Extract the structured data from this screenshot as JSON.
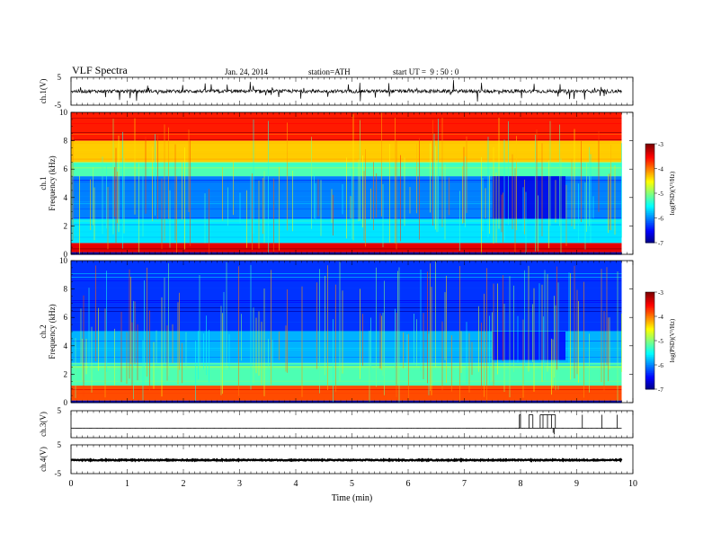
{
  "header": {
    "title": "VLF Spectra",
    "date": "Jan. 24, 2014",
    "station": "station=ATH",
    "start": "start UT =  9 : 50 : 0"
  },
  "chart_data": [
    {
      "id": "ch1_waveform",
      "type": "line",
      "ylabel": "ch.1(V)",
      "ylim": [
        -5,
        5
      ],
      "y_ticklabels": [
        "5",
        "-5"
      ],
      "xlim": [
        0,
        10
      ],
      "data_end_min": 9.8,
      "baseline_v": 0.0,
      "noise_amplitude_v": 1.2,
      "spike_max_v": 3.5
    },
    {
      "id": "ch1_spectrogram",
      "type": "heatmap",
      "ylabel": "ch.1",
      "ylabel2": "Frequency (kHz)",
      "ylim": [
        0,
        10
      ],
      "y_ticklabels": [
        "0",
        "2",
        "4",
        "6",
        "8",
        "10"
      ],
      "xlim": [
        0,
        10
      ],
      "colorbar": {
        "label": "log(PSD)(V²/Hz)",
        "range": [
          -7,
          -3
        ],
        "ticklabels": [
          "-3",
          "-4",
          "-5",
          "-6",
          "-7"
        ]
      },
      "bands": [
        {
          "f_min": 0.0,
          "f_max": 0.15,
          "log_psd": -6.9
        },
        {
          "f_min": 0.15,
          "f_max": 0.8,
          "log_psd": -3.4
        },
        {
          "f_min": 0.8,
          "f_max": 2.5,
          "log_psd": -5.6
        },
        {
          "f_min": 2.5,
          "f_max": 5.5,
          "log_psd": -6.0
        },
        {
          "f_min": 5.5,
          "f_max": 6.5,
          "log_psd": -5.2
        },
        {
          "f_min": 6.5,
          "f_max": 8.0,
          "log_psd": -4.3
        },
        {
          "f_min": 8.0,
          "f_max": 10.0,
          "log_psd": -3.6
        }
      ],
      "quiet_interval": {
        "t_min": 7.5,
        "t_max": 8.8,
        "f_min": 2.5,
        "f_max": 5.5,
        "log_psd": -6.6
      }
    },
    {
      "id": "ch2_spectrogram",
      "type": "heatmap",
      "ylabel": "ch.2",
      "ylabel2": "Frequency (kHz)",
      "ylim": [
        0,
        10
      ],
      "y_ticklabels": [
        "0",
        "2",
        "4",
        "6",
        "8",
        "10"
      ],
      "xlim": [
        0,
        10
      ],
      "colorbar": {
        "label": "log(PSD)(V²/Hz)",
        "range": [
          -7,
          -3
        ],
        "ticklabels": [
          "-3",
          "-4",
          "-5",
          "-6",
          "-7"
        ]
      },
      "bands": [
        {
          "f_min": 0.0,
          "f_max": 0.15,
          "log_psd": -6.9
        },
        {
          "f_min": 0.15,
          "f_max": 1.2,
          "log_psd": -3.8
        },
        {
          "f_min": 1.2,
          "f_max": 2.8,
          "log_psd": -5.2
        },
        {
          "f_min": 2.8,
          "f_max": 5.0,
          "log_psd": -5.8
        },
        {
          "f_min": 5.0,
          "f_max": 10.0,
          "log_psd": -6.3
        }
      ],
      "quiet_interval": {
        "t_min": 7.5,
        "t_max": 8.8,
        "f_min": 3.0,
        "f_max": 5.0,
        "log_psd": -6.5
      }
    },
    {
      "id": "ch3_waveform",
      "type": "line",
      "ylabel": "ch.3(V)",
      "ylim": [
        -5,
        5
      ],
      "y_ticklabels": [
        "5"
      ],
      "xlim": [
        0,
        10
      ],
      "data_end_min": 9.8,
      "baseline_v": -1.5,
      "pulses": [
        {
          "t": 7.98,
          "v": 3.5
        },
        {
          "t": 8.0,
          "v": 3.5
        },
        {
          "t": 8.15,
          "v": 3.5
        },
        {
          "t": 8.22,
          "v": 3.5
        },
        {
          "t": 8.35,
          "v": 3.5
        },
        {
          "t": 8.4,
          "v": 3.5
        },
        {
          "t": 8.48,
          "v": 3.5
        },
        {
          "t": 8.55,
          "v": 3.5
        },
        {
          "t": 8.62,
          "v": 3.5
        },
        {
          "t": 9.1,
          "v": 3.5
        },
        {
          "t": 9.45,
          "v": 3.5
        },
        {
          "t": 9.72,
          "v": 3.5
        }
      ],
      "dropouts": [
        {
          "t": 8.58,
          "v": -3.2
        },
        {
          "t": 8.6,
          "v": -3.8
        }
      ]
    },
    {
      "id": "ch4_waveform",
      "type": "line",
      "ylabel": "ch.4(V)",
      "ylim": [
        -5,
        5
      ],
      "y_ticklabels": [
        "5",
        "-5"
      ],
      "xlim": [
        0,
        10
      ],
      "data_end_min": 9.8,
      "baseline_v": -0.3,
      "noise_amplitude_v": 0.35
    }
  ],
  "xaxis": {
    "label": "Time (min)",
    "ticklabels": [
      "0",
      "1",
      "2",
      "3",
      "4",
      "5",
      "6",
      "7",
      "8",
      "9",
      "10"
    ],
    "range": [
      0,
      10
    ]
  }
}
